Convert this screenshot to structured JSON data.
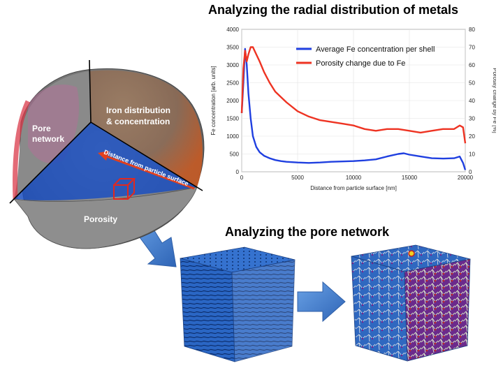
{
  "titles": {
    "radial": "Analyzing the radial distribution of metals",
    "pore": "Analyzing the pore network"
  },
  "particle": {
    "labels": {
      "iron_line1": "Iron distribution",
      "iron_line2": "& concentration",
      "pore_line1": "Pore",
      "pore_line2": "network",
      "porosity": "Porosity",
      "distance": "Distance from particle surface"
    }
  },
  "colors": {
    "fe_series": "#1f3fe0",
    "porosity_series": "#ee3322",
    "cube_blue": "#2a66c4",
    "arrow_blue": "#3f7fd0",
    "distance_arrow": "#e2401e"
  },
  "chart_data": {
    "type": "line",
    "xlabel": "Distance from particle surface [nm]",
    "ylabel": "Fe concentration [arb. units]",
    "y2label": "Porosity change by Fe [%]",
    "xlim": [
      0,
      20000
    ],
    "ylim": [
      0,
      4000
    ],
    "y2lim": [
      0,
      80
    ],
    "xticks": [
      "0",
      "5000",
      "10000",
      "15000",
      "20000"
    ],
    "yticks": [
      "0",
      "500",
      "1000",
      "1500",
      "2000",
      "2500",
      "3000",
      "3500",
      "4000"
    ],
    "y2ticks": [
      "0",
      "10",
      "20",
      "30",
      "40",
      "50",
      "60",
      "70",
      "80"
    ],
    "grid": true,
    "legend_position": "top-right",
    "series": [
      {
        "name": "Average Fe concentration per shell",
        "axis": "left",
        "x": [
          0,
          150,
          300,
          450,
          600,
          800,
          1000,
          1300,
          1600,
          2000,
          2500,
          3000,
          3500,
          4000,
          5000,
          6000,
          7000,
          8000,
          9000,
          10000,
          11000,
          12000,
          13000,
          14000,
          14500,
          15000,
          16000,
          17000,
          18000,
          19000,
          19500,
          19800,
          20000
        ],
        "values": [
          1650,
          2500,
          3450,
          3000,
          2200,
          1500,
          1000,
          700,
          550,
          450,
          380,
          330,
          300,
          280,
          260,
          250,
          260,
          280,
          290,
          300,
          320,
          350,
          430,
          500,
          520,
          480,
          430,
          380,
          370,
          380,
          430,
          250,
          50
        ]
      },
      {
        "name": "Porosity change due to Fe",
        "axis": "right",
        "x": [
          0,
          150,
          300,
          450,
          600,
          800,
          1000,
          1300,
          1600,
          2000,
          2500,
          3000,
          3500,
          4000,
          5000,
          6000,
          7000,
          8000,
          9000,
          10000,
          11000,
          12000,
          13000,
          14000,
          15000,
          16000,
          17000,
          18000,
          19000,
          19500,
          19800,
          20000
        ],
        "values": [
          33,
          58,
          68,
          62,
          66,
          70,
          70,
          66,
          62,
          56,
          50,
          45,
          42,
          39,
          34,
          31,
          29,
          28,
          27,
          26,
          24,
          23,
          24,
          24,
          23,
          22,
          23,
          24,
          24,
          26,
          25,
          16
        ]
      }
    ]
  }
}
